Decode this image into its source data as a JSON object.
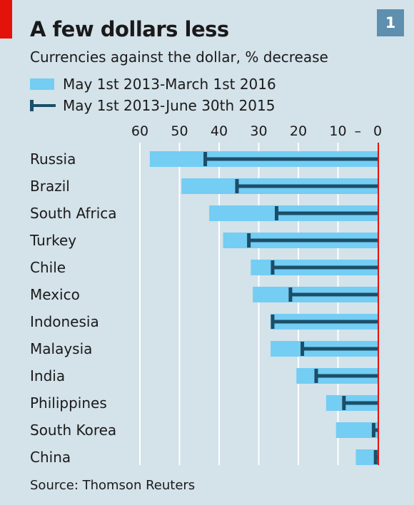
{
  "header": {
    "title": "A few dollars less",
    "subtitle": "Currencies against the dollar, % decrease",
    "badge": "1"
  },
  "legend": {
    "bar_label": "May 1st 2013-March 1st 2016",
    "line_label": "May 1st 2013-June 30th 2015"
  },
  "source": "Source: Thomson Reuters",
  "colors": {
    "bar": "#74cdf3",
    "line": "#1b4e69",
    "zero_line": "#e3120b",
    "grid": "#ffffff",
    "background": "#d4e2ea"
  },
  "chart_data": {
    "type": "bar",
    "orientation": "horizontal",
    "categories": [
      "Russia",
      "Brazil",
      "South Africa",
      "Turkey",
      "Chile",
      "Mexico",
      "Indonesia",
      "Malaysia",
      "India",
      "Philippines",
      "South Korea",
      "China"
    ],
    "series": [
      {
        "name": "May 1st 2013-March 1st 2016",
        "values": [
          57.5,
          49.5,
          42.5,
          39,
          32,
          31.5,
          27,
          27,
          20.5,
          13,
          10.5,
          5.5
        ]
      },
      {
        "name": "May 1st 2013-June 30th 2015",
        "values": [
          43.5,
          35.5,
          25.5,
          32.5,
          26.5,
          22,
          26.5,
          19,
          15.5,
          8.5,
          1,
          0.5
        ]
      }
    ],
    "xticks": [
      "60",
      "50",
      "40",
      "30",
      "20",
      "10",
      "–",
      "0"
    ],
    "xlim": [
      60,
      0
    ],
    "grid": true,
    "legend_position": "top-left"
  }
}
